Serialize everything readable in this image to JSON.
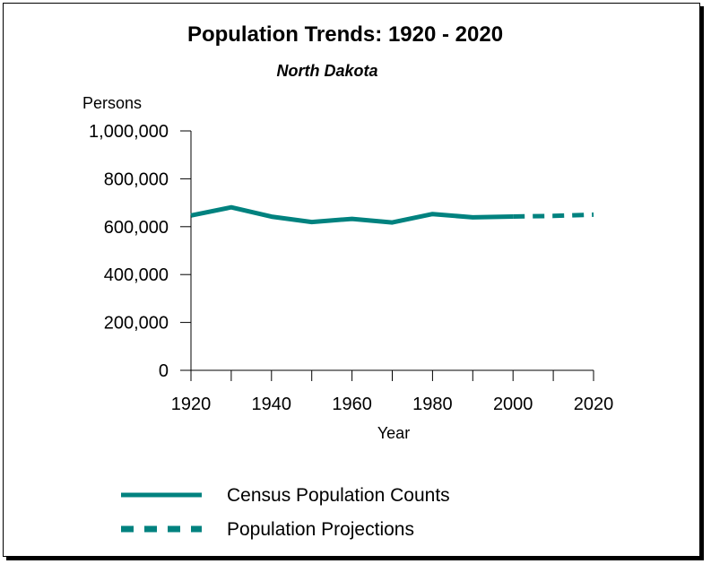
{
  "chart_data": {
    "type": "line",
    "title": "Population Trends: 1920 - 2020",
    "subtitle": "North Dakota",
    "ylabel": "Persons",
    "xlabel": "Year",
    "xlim": [
      1920,
      2020
    ],
    "ylim": [
      0,
      1000000
    ],
    "x_ticks": [
      1920,
      1930,
      1940,
      1950,
      1960,
      1970,
      1980,
      1990,
      2000,
      2010,
      2020
    ],
    "x_tick_labels": [
      "1920",
      "1940",
      "1960",
      "1980",
      "2000",
      "2020"
    ],
    "x_tick_label_values": [
      1920,
      1940,
      1960,
      1980,
      2000,
      2020
    ],
    "y_ticks": [
      0,
      200000,
      400000,
      600000,
      800000,
      1000000
    ],
    "y_tick_labels": [
      "0",
      "200,000",
      "400,000",
      "600,000",
      "800,000",
      "1,000,000"
    ],
    "line_color": "#00827F",
    "legend_position": "bottom",
    "series": [
      {
        "name": "Census Population Counts",
        "style": "solid",
        "x": [
          1920,
          1930,
          1940,
          1950,
          1960,
          1970,
          1980,
          1990,
          2000
        ],
        "y": [
          646872,
          680845,
          641935,
          619636,
          632446,
          617761,
          652717,
          638800,
          642200
        ]
      },
      {
        "name": "Population Projections",
        "style": "dashed",
        "x": [
          2000,
          2010,
          2020
        ],
        "y": [
          642200,
          645000,
          650000
        ]
      }
    ]
  }
}
